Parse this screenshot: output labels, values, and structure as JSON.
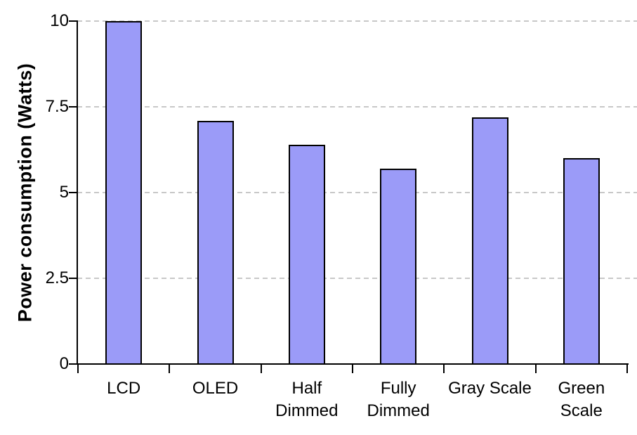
{
  "chart_data": {
    "type": "bar",
    "title": "",
    "categories": [
      "LCD",
      "OLED",
      "Half\nDimmed",
      "Fully\nDimmed",
      "Gray Scale",
      "Green\nScale"
    ],
    "values": [
      10,
      7.1,
      6.4,
      5.7,
      7.2,
      6.0
    ],
    "xlabel": "",
    "ylabel": "Power consumption (Watts)",
    "ylim": [
      0,
      10
    ],
    "yticks": [
      0,
      2.5,
      5,
      7.5,
      10
    ],
    "ytick_labels": [
      "0",
      "2.5",
      "5",
      "7.5",
      "10"
    ],
    "grid": "horizontal-dashed",
    "legend": "none",
    "colors": {
      "bar_fill": "#9B9BF8",
      "bar_border": "#000000",
      "gridline": "#C8C8C8",
      "axis": "#000000",
      "text": "#000000",
      "background": "#FFFFFF"
    }
  }
}
